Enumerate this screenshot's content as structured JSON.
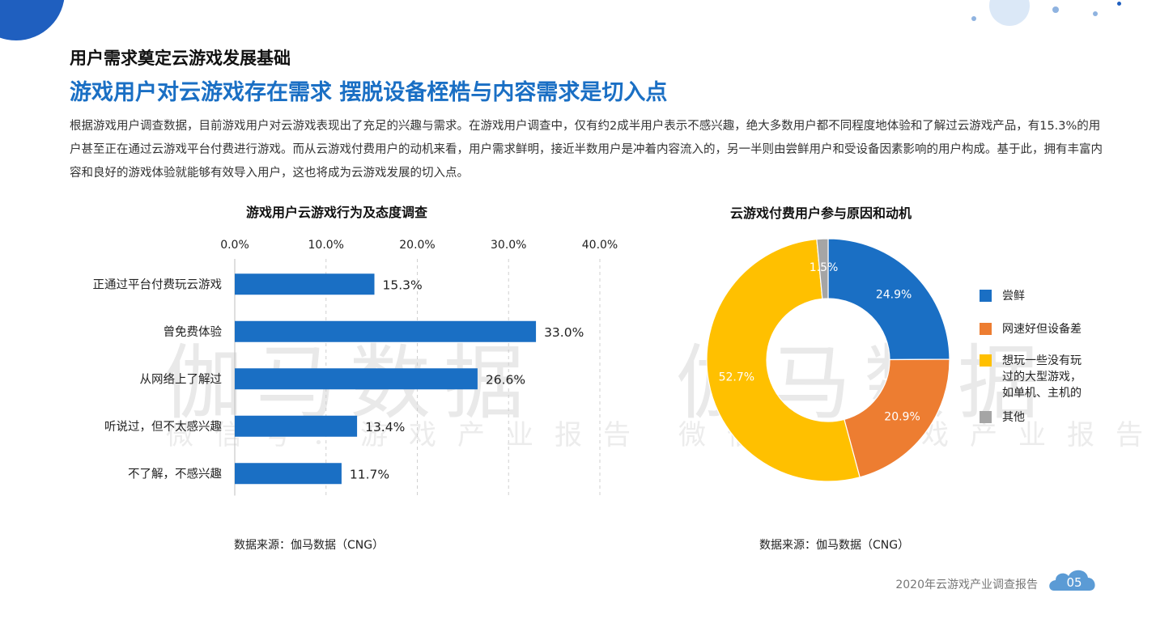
{
  "header": {
    "kicker": "用户需求奠定云游戏发展基础",
    "headline": "游戏用户对云游戏存在需求  摆脱设备桎梏与内容需求是切入点",
    "body": "根据游戏用户调查数据，目前游戏用户对云游戏表现出了充足的兴趣与需求。在游戏用户调查中，仅有约2成半用户表示不感兴趣，绝大多数用户都不同程度地体验和了解过云游戏产品，有15.3%的用户甚至正在通过云游戏平台付费进行游戏。而从云游戏付费用户的动机来看，用户需求鲜明，接近半数用户是冲着内容流入的，另一半则由尝鲜用户和受设备因素影响的用户构成。基于此，拥有丰富内容和良好的游戏体验就能够有效导入用户，这也将成为云游戏发展的切入点。"
  },
  "watermark": {
    "main": "伽马数据",
    "sub": "微信号：游戏产业报告"
  },
  "chart_data": [
    {
      "type": "bar",
      "orientation": "horizontal",
      "title": "游戏用户云游戏行为及态度调查",
      "categories": [
        "正通过平台付费玩云游戏",
        "曾免费体验",
        "从网络上了解过",
        "听说过，但不太感兴趣",
        "不了解，不感兴趣"
      ],
      "values": [
        15.3,
        33.0,
        26.6,
        13.4,
        11.7
      ],
      "value_labels": [
        "15.3%",
        "33.0%",
        "26.6%",
        "13.4%",
        "11.7%"
      ],
      "xlim": [
        0,
        40
      ],
      "xticks": [
        0,
        10,
        20,
        30,
        40
      ],
      "xtick_labels": [
        "0.0%",
        "10.0%",
        "20.0%",
        "30.0%",
        "40.0%"
      ],
      "axis_position": "top",
      "grid": "vertical dashed",
      "color": "#1a6fc4",
      "source": "数据来源：伽马数据（CNG）"
    },
    {
      "type": "pie",
      "style": "donut",
      "title": "云游戏付费用户参与原因和动机",
      "slices": [
        {
          "label": "尝鲜",
          "value": 24.9,
          "value_label": "24.9%",
          "color": "#1a6fc4"
        },
        {
          "label": "网速好但设备差",
          "value": 20.9,
          "value_label": "20.9%",
          "color": "#ed7d31"
        },
        {
          "label": "想玩一些没有玩过的大型游戏，如单机、主机的",
          "value": 52.7,
          "value_label": "52.7%",
          "color": "#ffc000"
        },
        {
          "label": "其他",
          "value": 1.5,
          "value_label": "1.5%",
          "color": "#a5a5a5"
        }
      ],
      "legend": "right",
      "source": "数据来源：伽马数据（CNG）"
    }
  ],
  "footer": {
    "report_title": "2020年云游戏产业调查报告",
    "page_number": "05"
  }
}
